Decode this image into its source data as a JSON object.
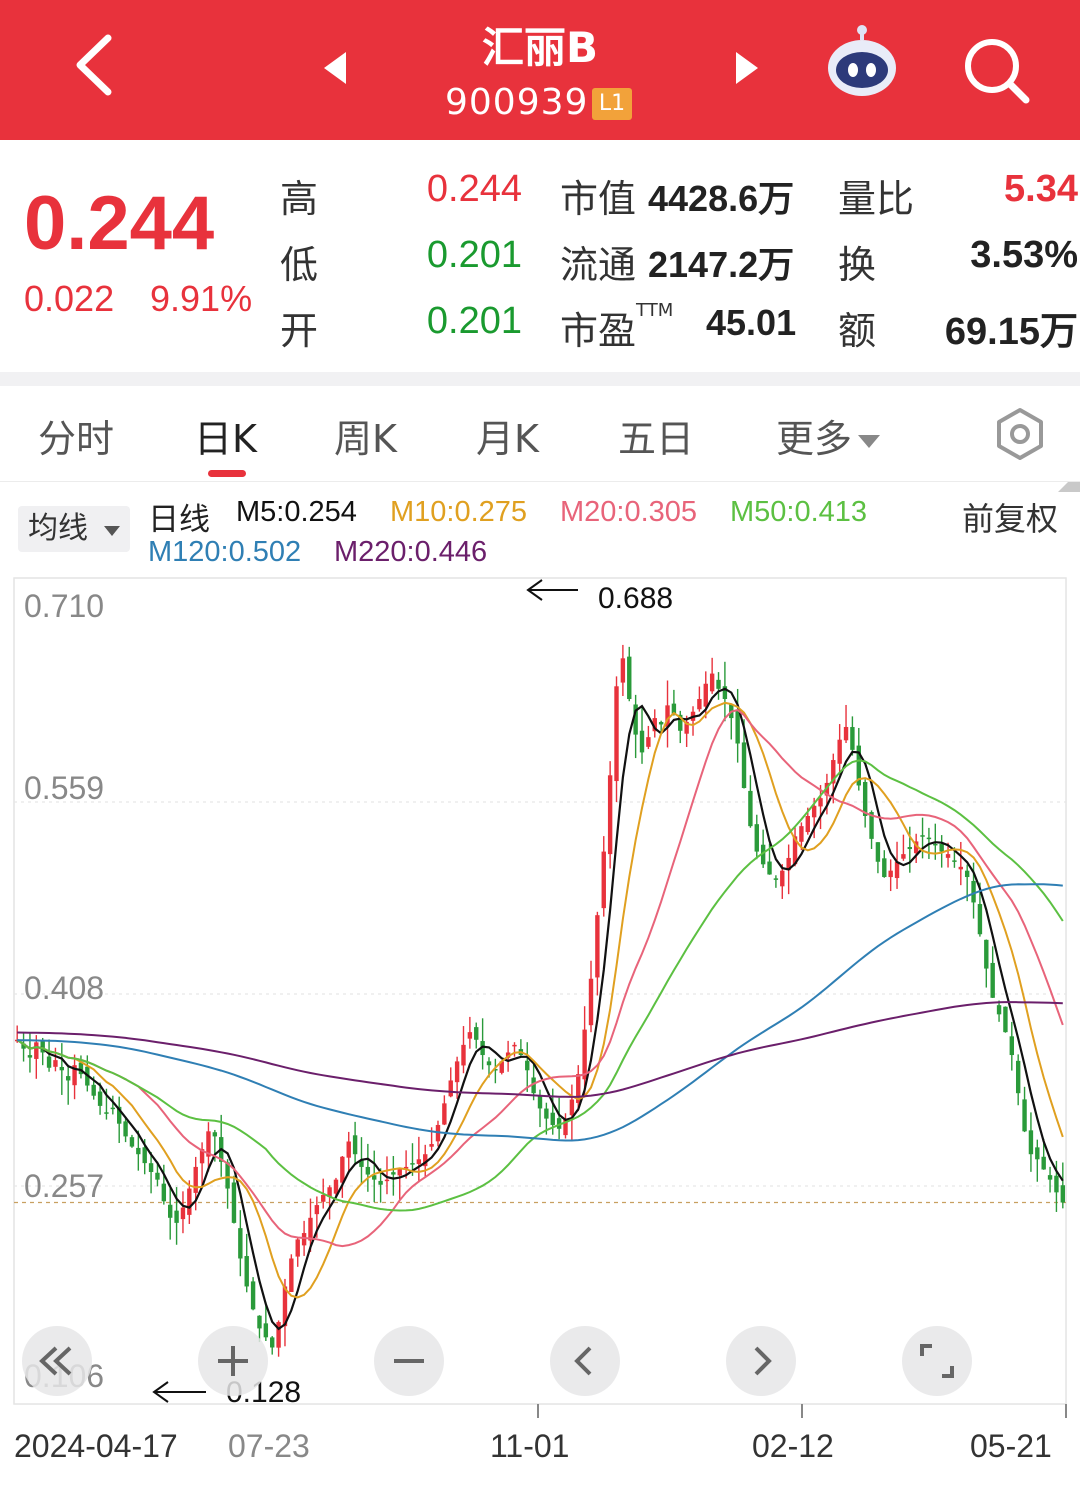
{
  "header": {
    "name": "汇丽B",
    "code": "900939",
    "level": "L1"
  },
  "quote": {
    "price": "0.244",
    "change": "0.022",
    "change_pct": "9.91%",
    "rows": [
      {
        "label": "高",
        "value": "0.244",
        "color": "#e8323c",
        "label2": "市值",
        "value2": "4428.6万",
        "label3": "量比",
        "value3": "5.34",
        "color3": "#e8323c"
      },
      {
        "label": "低",
        "value": "0.201",
        "color": "#1a9a2f",
        "label2": "流通",
        "value2": "2147.2万",
        "label3": "换",
        "value3": "3.53%",
        "color3": "#222222"
      },
      {
        "label": "开",
        "value": "0.201",
        "color": "#1a9a2f",
        "label2": "市盈",
        "label2_sup": "TTM",
        "value2": "45.01",
        "label3": "额",
        "value3": "69.15万",
        "color3": "#222222"
      }
    ]
  },
  "tabs": [
    {
      "label": "分时"
    },
    {
      "label": "日K"
    },
    {
      "label": "周K"
    },
    {
      "label": "月K"
    },
    {
      "label": "五日"
    },
    {
      "label": "更多"
    }
  ],
  "ma_select": "均线",
  "adjust": "前复权",
  "legend": [
    {
      "text": "日线",
      "color": "#222222"
    },
    {
      "text": "M5:0.254",
      "color": "#111111"
    },
    {
      "text": "M10:0.275",
      "color": "#e0a020"
    },
    {
      "text": "M20:0.305",
      "color": "#e8647a"
    },
    {
      "text": "M50:0.413",
      "color": "#5cc042"
    },
    {
      "text": "M120:0.502",
      "color": "#2f7fb4"
    },
    {
      "text": "M220:0.446",
      "color": "#6b1f6b"
    }
  ],
  "chart_data": {
    "type": "candlestick",
    "y_ticks": [
      "0.710",
      "0.559",
      "0.408",
      "0.257",
      "0.106"
    ],
    "x_ticks": [
      "2024-04-17",
      "07-23",
      "11-01",
      "02-12",
      "05-21"
    ],
    "ylim": [
      0.106,
      0.71
    ],
    "current_price": 0.244,
    "annotations": [
      {
        "label": "0.688",
        "type": "high"
      },
      {
        "label": "0.128",
        "type": "low"
      }
    ],
    "close_series": [
      0.372,
      0.365,
      0.358,
      0.37,
      0.362,
      0.35,
      0.356,
      0.348,
      0.34,
      0.352,
      0.345,
      0.336,
      0.328,
      0.32,
      0.314,
      0.318,
      0.306,
      0.296,
      0.288,
      0.282,
      0.275,
      0.268,
      0.262,
      0.245,
      0.232,
      0.228,
      0.24,
      0.255,
      0.272,
      0.286,
      0.3,
      0.296,
      0.276,
      0.255,
      0.228,
      0.2,
      0.178,
      0.16,
      0.145,
      0.138,
      0.13,
      0.15,
      0.178,
      0.2,
      0.215,
      0.22,
      0.232,
      0.242,
      0.25,
      0.256,
      0.262,
      0.28,
      0.292,
      0.282,
      0.272,
      0.266,
      0.262,
      0.258,
      0.262,
      0.266,
      0.27,
      0.272,
      0.275,
      0.278,
      0.282,
      0.29,
      0.305,
      0.322,
      0.34,
      0.355,
      0.368,
      0.378,
      0.372,
      0.36,
      0.352,
      0.348,
      0.355,
      0.362,
      0.368,
      0.36,
      0.348,
      0.33,
      0.318,
      0.31,
      0.305,
      0.302,
      0.31,
      0.325,
      0.345,
      0.38,
      0.42,
      0.47,
      0.52,
      0.58,
      0.65,
      0.672,
      0.64,
      0.612,
      0.598,
      0.61,
      0.625,
      0.62,
      0.635,
      0.628,
      0.615,
      0.622,
      0.63,
      0.64,
      0.652,
      0.66,
      0.648,
      0.64,
      0.625,
      0.605,
      0.57,
      0.54,
      0.52,
      0.51,
      0.502,
      0.498,
      0.505,
      0.515,
      0.532,
      0.54,
      0.548,
      0.556,
      0.562,
      0.574,
      0.592,
      0.608,
      0.618,
      0.6,
      0.572,
      0.548,
      0.53,
      0.512,
      0.5,
      0.505,
      0.512,
      0.518,
      0.522,
      0.528,
      0.532,
      0.53,
      0.525,
      0.52,
      0.518,
      0.512,
      0.508,
      0.5,
      0.48,
      0.455,
      0.428,
      0.405,
      0.392,
      0.378,
      0.36,
      0.33,
      0.3,
      0.282,
      0.278,
      0.27,
      0.262,
      0.252,
      0.244
    ]
  }
}
